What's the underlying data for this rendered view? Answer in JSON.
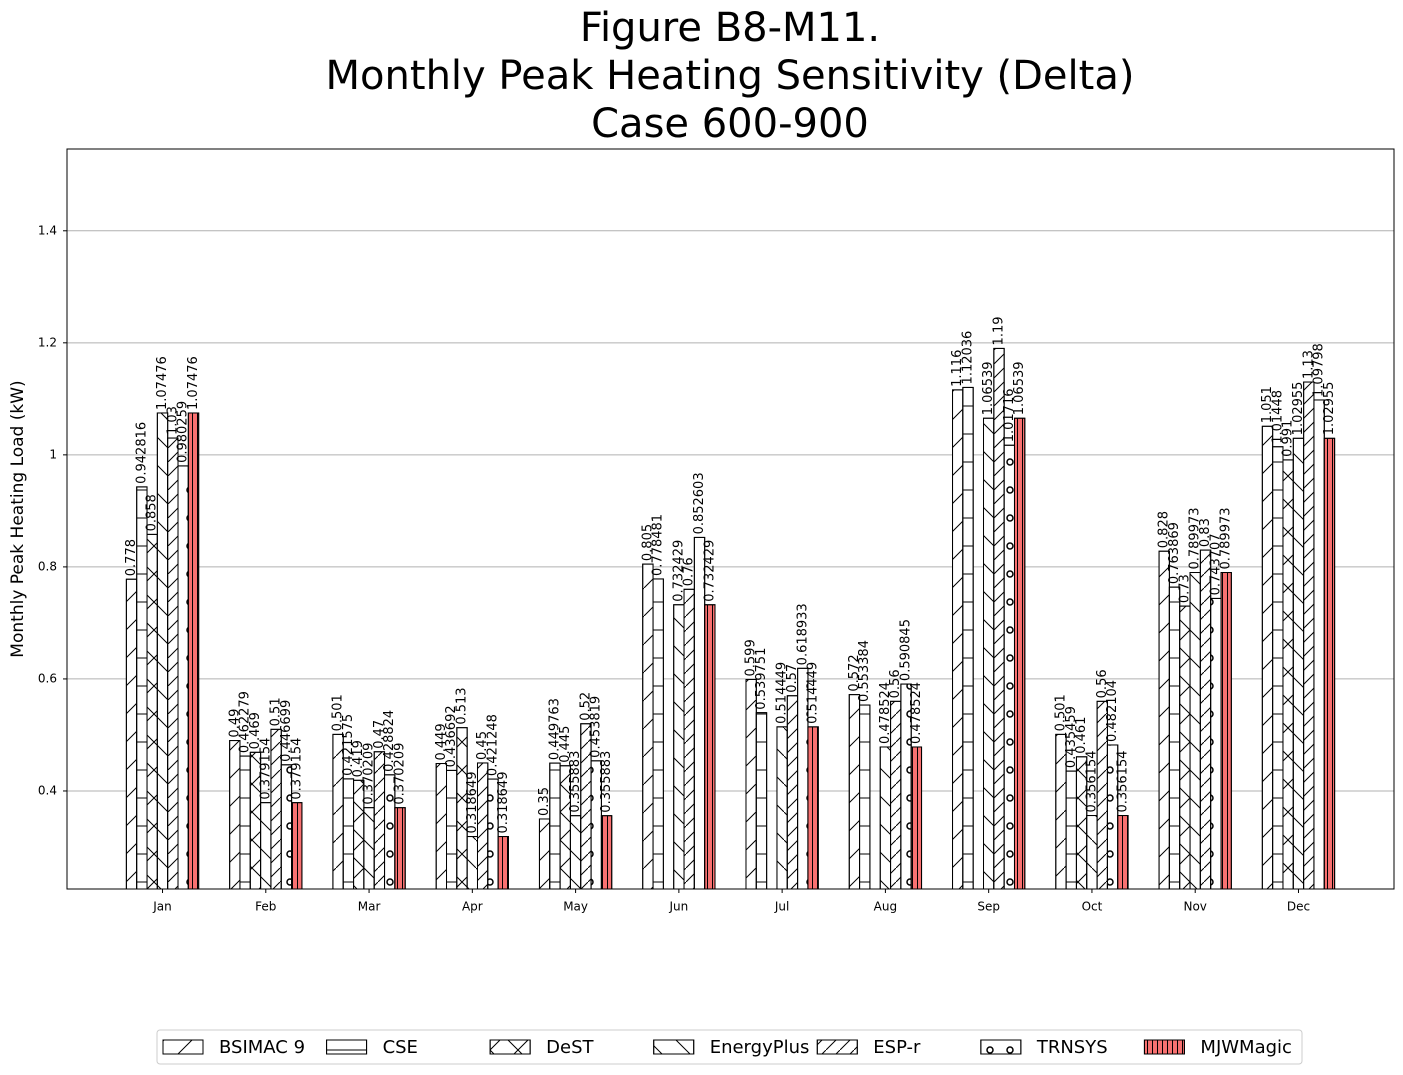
{
  "chart_data": {
    "type": "bar",
    "title": [
      "Figure B8-M11.",
      "Monthly Peak Heating Sensitivity (Delta)",
      "Case 600-900"
    ],
    "y_label": "Monthly Peak Heating Load (kW)",
    "categories": [
      "Jan",
      "Feb",
      "Mar",
      "Apr",
      "May",
      "Jun",
      "Jul",
      "Aug",
      "Sep",
      "Oct",
      "Nov",
      "Dec"
    ],
    "series": [
      {
        "name": "BSIMAC 9",
        "color": "#ffffff",
        "hatch": "/",
        "values": [
          0.778,
          0.49,
          0.501,
          0.449,
          0.35,
          0.805,
          0.599,
          0.572,
          1.116,
          0.501,
          0.828,
          1.051
        ]
      },
      {
        "name": "CSE",
        "color": "#ffffff",
        "hatch": "-",
        "values": [
          0.942816,
          0.462279,
          0.421575,
          0.436692,
          0.449763,
          0.778481,
          0.539751,
          0.553384,
          1.12036,
          0.435459,
          0.763869,
          1.01448
        ]
      },
      {
        "name": "DeST",
        "color": "#ffffff",
        "hatch": "x",
        "values": [
          0.858,
          0.469,
          0.419,
          0.513,
          0.445,
          null,
          null,
          null,
          null,
          0.461,
          0.73,
          0.991
        ]
      },
      {
        "name": "EnergyPlus",
        "color": "#ffffff",
        "hatch": "\\",
        "values": [
          1.07476,
          0.379154,
          0.370209,
          0.318649,
          0.355883,
          0.732429,
          0.514449,
          0.478524,
          1.06539,
          0.356154,
          0.789973,
          1.02955
        ]
      },
      {
        "name": "ESP-r",
        "color": "#ffffff",
        "hatch": "//",
        "values": [
          1.03,
          0.51,
          0.47,
          0.45,
          0.52,
          0.76,
          0.57,
          0.56,
          1.19,
          0.56,
          0.83,
          1.13
        ]
      },
      {
        "name": "TRNSYS",
        "color": "#ffffff",
        "hatch": "o",
        "values": [
          0.980259,
          0.446699,
          0.428824,
          0.421248,
          0.453819,
          0.852603,
          0.618933,
          0.590845,
          1.01716,
          0.482104,
          0.743707,
          1.09798
        ]
      },
      {
        "name": "MJWMagic",
        "color": "#f87171",
        "hatch": "|",
        "values": [
          1.07476,
          0.379154,
          0.370209,
          0.318649,
          0.355883,
          0.732429,
          0.514449,
          0.478524,
          1.06539,
          0.356154,
          0.789973,
          1.02955
        ]
      }
    ],
    "ylim": [
      0.225,
      1.546
    ],
    "yticks": [
      0.4,
      0.6,
      0.8,
      1.0,
      1.2,
      1.4
    ],
    "grid": true,
    "legend": "bottom"
  }
}
